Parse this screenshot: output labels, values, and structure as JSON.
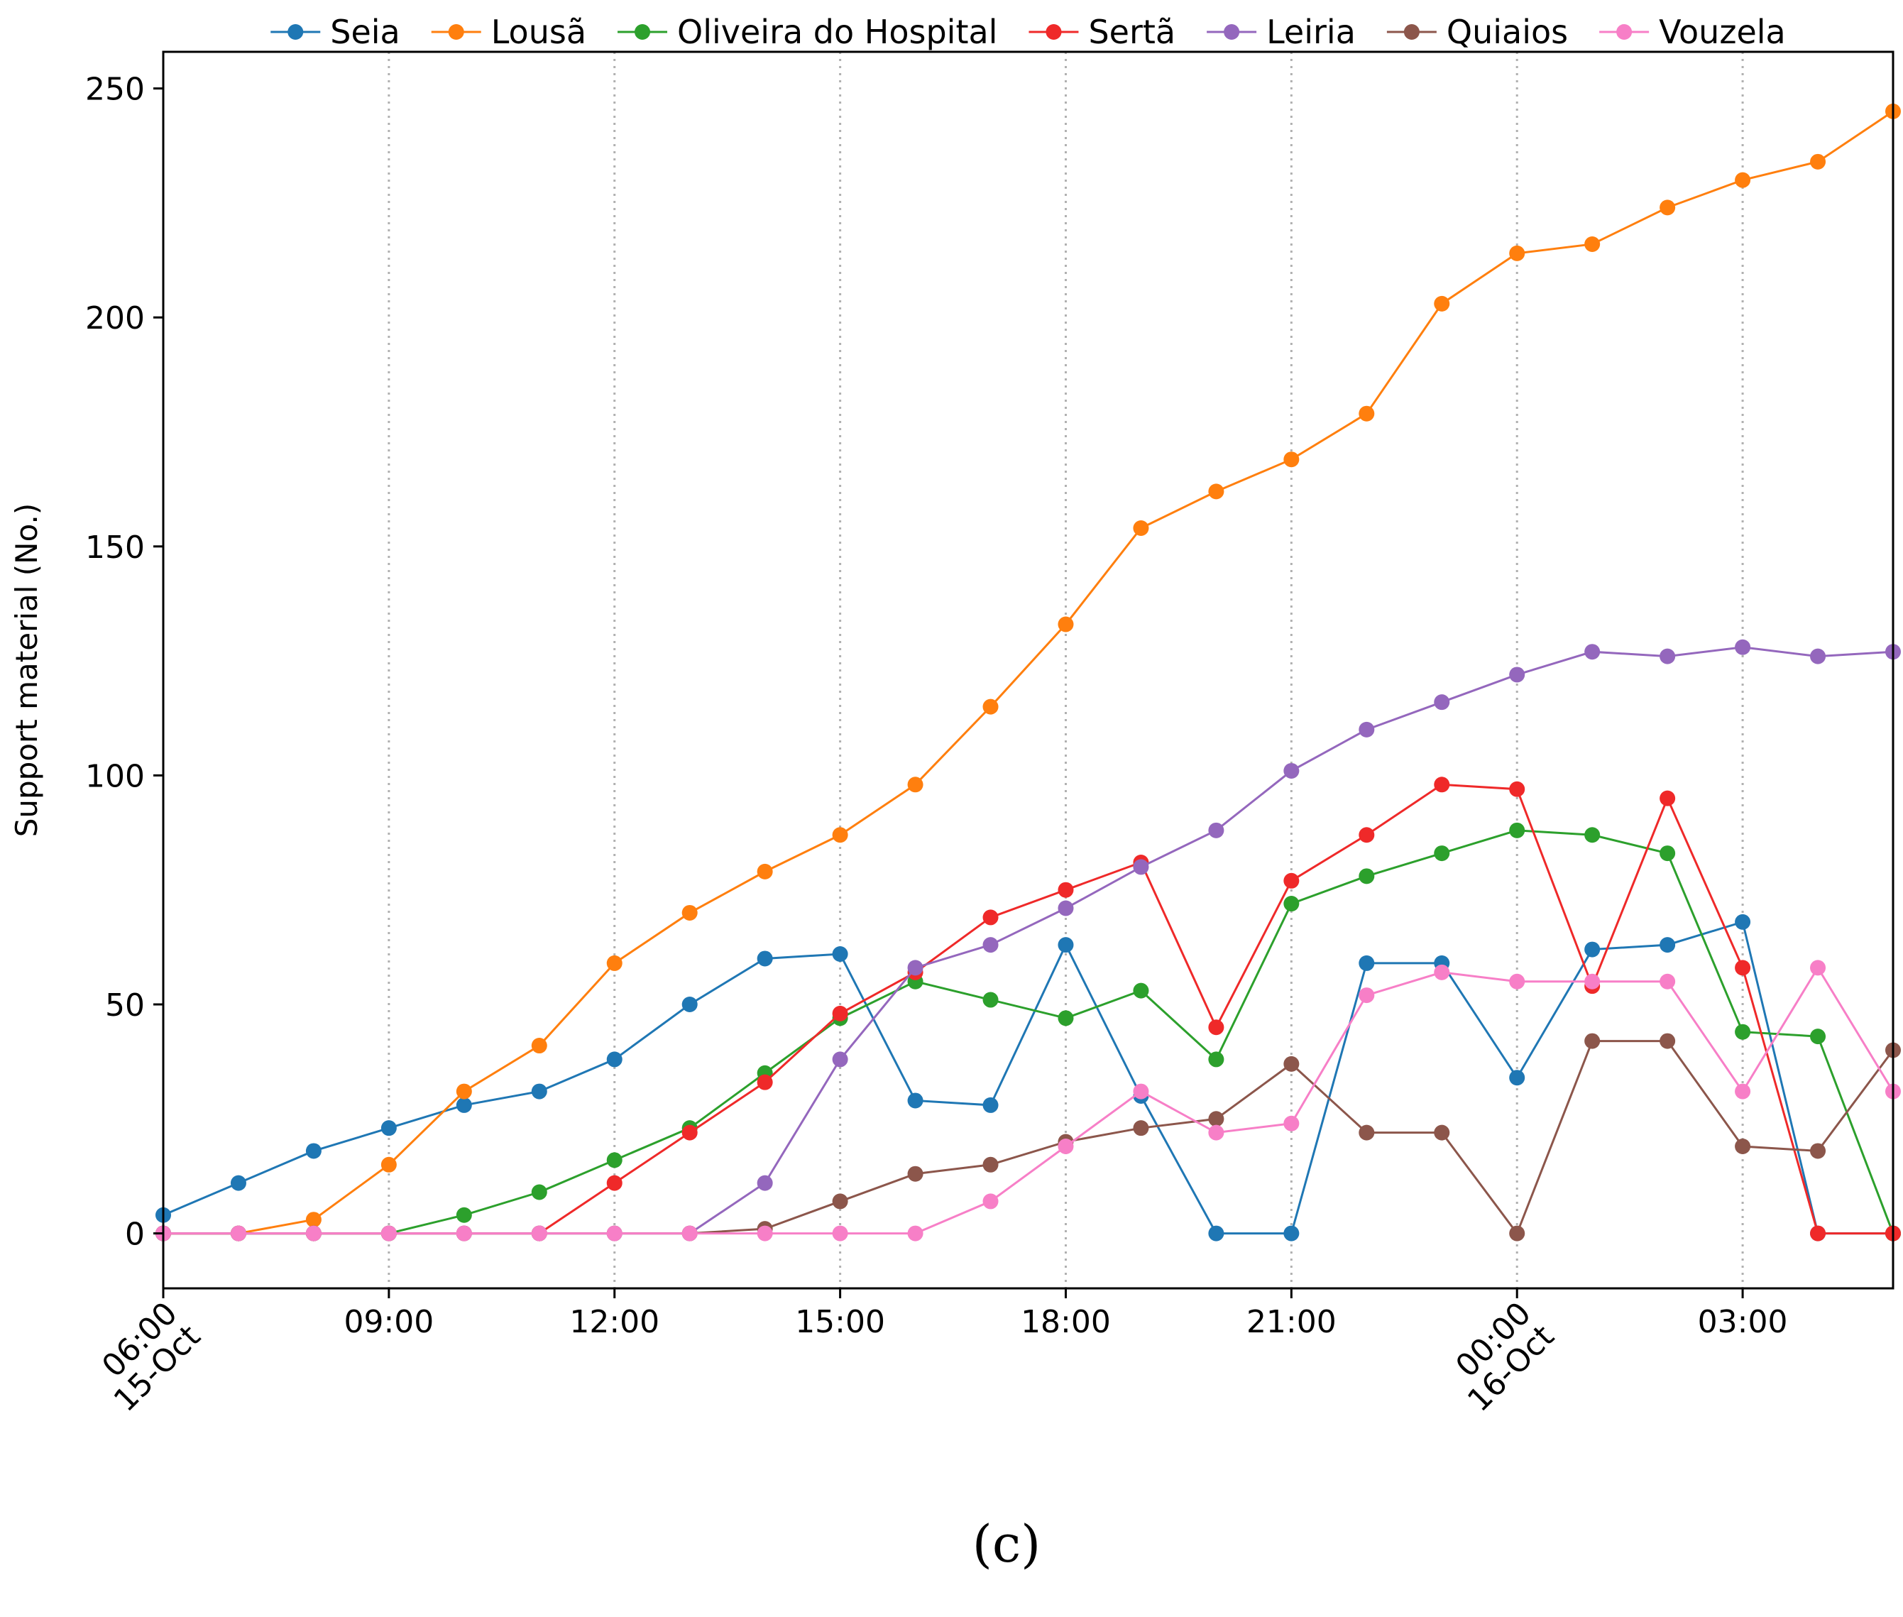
{
  "chart_data": {
    "type": "line",
    "title": "",
    "xlabel": "",
    "ylabel": "Support material (No.)",
    "caption": "(c)",
    "ylim": [
      -12,
      258
    ],
    "xlim": [
      0,
      23
    ],
    "yticks": [
      0,
      50,
      100,
      150,
      200,
      250
    ],
    "x_time_labels": [
      "06:00",
      "07:00",
      "08:00",
      "09:00",
      "10:00",
      "11:00",
      "12:00",
      "13:00",
      "14:00",
      "15:00",
      "16:00",
      "17:00",
      "18:00",
      "19:00",
      "20:00",
      "21:00",
      "22:00",
      "23:00",
      "00:00",
      "01:00",
      "02:00",
      "03:00",
      "04:00",
      "05:00"
    ],
    "xticks": [
      {
        "x": 0,
        "lines": [
          "06:00",
          "15-Oct"
        ],
        "rotated": true
      },
      {
        "x": 3,
        "lines": [
          "09:00"
        ],
        "rotated": false
      },
      {
        "x": 6,
        "lines": [
          "12:00"
        ],
        "rotated": false
      },
      {
        "x": 9,
        "lines": [
          "15:00"
        ],
        "rotated": false
      },
      {
        "x": 12,
        "lines": [
          "18:00"
        ],
        "rotated": false
      },
      {
        "x": 15,
        "lines": [
          "21:00"
        ],
        "rotated": false
      },
      {
        "x": 18,
        "lines": [
          "00:00",
          "16-Oct"
        ],
        "rotated": true
      },
      {
        "x": 21,
        "lines": [
          "03:00"
        ],
        "rotated": false
      }
    ],
    "grid_x": [
      3,
      6,
      9,
      12,
      15,
      18,
      21
    ],
    "legend_position": "top",
    "series": [
      {
        "name": "Seia",
        "color": "#1f77b4",
        "values": [
          4,
          11,
          18,
          23,
          28,
          31,
          38,
          50,
          60,
          61,
          29,
          28,
          63,
          30,
          0,
          0,
          59,
          59,
          34,
          62,
          63,
          68,
          0,
          0
        ]
      },
      {
        "name": "Lousã",
        "color": "#ff7f0e",
        "values": [
          0,
          0,
          3,
          15,
          31,
          41,
          59,
          70,
          79,
          87,
          98,
          115,
          133,
          154,
          162,
          169,
          179,
          203,
          214,
          216,
          224,
          230,
          234,
          245
        ]
      },
      {
        "name": "Oliveira do Hospital",
        "color": "#2ca02c",
        "values": [
          0,
          0,
          0,
          0,
          4,
          9,
          16,
          23,
          35,
          47,
          55,
          51,
          47,
          53,
          38,
          72,
          78,
          83,
          88,
          87,
          83,
          44,
          43,
          0
        ]
      },
      {
        "name": "Sertã",
        "color": "#ef2929",
        "values": [
          0,
          0,
          0,
          0,
          0,
          0,
          11,
          22,
          33,
          48,
          57,
          69,
          75,
          81,
          45,
          77,
          87,
          98,
          97,
          54,
          95,
          58,
          0,
          0
        ]
      },
      {
        "name": "Leiria",
        "color": "#9467bd",
        "values": [
          0,
          0,
          0,
          0,
          0,
          0,
          0,
          0,
          11,
          38,
          58,
          63,
          71,
          80,
          88,
          101,
          110,
          116,
          122,
          127,
          126,
          128,
          126,
          127
        ]
      },
      {
        "name": "Quiaios",
        "color": "#8c564b",
        "values": [
          0,
          0,
          0,
          0,
          0,
          0,
          0,
          0,
          1,
          7,
          13,
          15,
          20,
          23,
          25,
          37,
          22,
          22,
          0,
          42,
          42,
          19,
          18,
          40
        ]
      },
      {
        "name": "Vouzela",
        "color": "#f77fc7",
        "values": [
          0,
          0,
          0,
          0,
          0,
          0,
          0,
          0,
          0,
          0,
          0,
          7,
          19,
          31,
          22,
          24,
          52,
          57,
          55,
          55,
          55,
          31,
          58,
          31
        ]
      }
    ]
  }
}
